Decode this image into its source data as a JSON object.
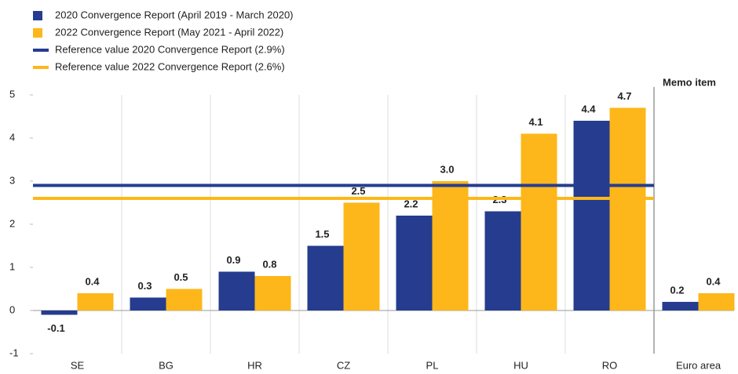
{
  "chart_data": {
    "type": "bar",
    "categories": [
      "SE",
      "BG",
      "HR",
      "CZ",
      "PL",
      "HU",
      "RO",
      "Euro area"
    ],
    "series": [
      {
        "name": "2020 Convergence Report (April 2019 - March 2020)",
        "color": "#253c8f",
        "values": [
          -0.1,
          0.3,
          0.9,
          1.5,
          2.2,
          2.3,
          4.4,
          0.2
        ],
        "value_labels": [
          "-0.1",
          "0.3",
          "0.9",
          "1.5",
          "2.2",
          "2.3",
          "4.4",
          "0.2"
        ]
      },
      {
        "name": "2022 Convergence Report (May 2021 - April 2022)",
        "color": "#fdb71a",
        "values": [
          0.4,
          0.5,
          0.8,
          2.5,
          3.0,
          4.1,
          4.7,
          0.4
        ],
        "value_labels": [
          "0.4",
          "0.5",
          "0.8",
          "2.5",
          "3.0",
          "4.1",
          "4.7",
          "0.4"
        ]
      }
    ],
    "reference_lines": [
      {
        "name": "Reference value 2020 Convergence Report (2.9%)",
        "color": "#253c8f",
        "value": 2.9
      },
      {
        "name": "Reference value 2022 Convergence Report (2.6%)",
        "color": "#fdb71a",
        "value": 2.6
      }
    ],
    "annotation": "Memo item",
    "ylim": [
      -1,
      5
    ],
    "yticks": [
      -1,
      0,
      1,
      2,
      3,
      4,
      5
    ]
  }
}
